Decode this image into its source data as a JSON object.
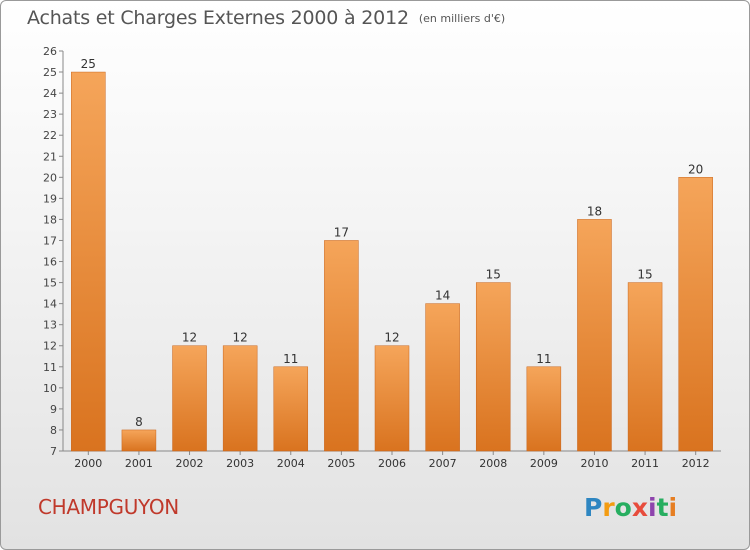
{
  "header": {
    "title": "Achats et Charges Externes 2000 à 2012",
    "unit": "(en milliers d'€)"
  },
  "footer": {
    "commune": "CHAMPGUYON",
    "logo_letters": [
      "P",
      "r",
      "o",
      "x",
      "i",
      "t",
      "i"
    ],
    "logo_colors": [
      "#2e86c1",
      "#f39c12",
      "#27ae60",
      "#e74c3c",
      "#8e44ad",
      "#27ae60",
      "#e67e22"
    ]
  },
  "colors": {
    "bar_light": "#f5a55a",
    "bar_dark": "#d9731f",
    "commune_text": "#c0392b"
  },
  "chart_data": {
    "type": "bar",
    "title": "Achats et Charges Externes 2000 à 2012",
    "subtitle": "(en milliers d'€)",
    "categories": [
      "2000",
      "2001",
      "2002",
      "2003",
      "2004",
      "2005",
      "2006",
      "2007",
      "2008",
      "2009",
      "2010",
      "2011",
      "2012"
    ],
    "values": [
      25,
      8,
      12,
      12,
      11,
      17,
      12,
      14,
      15,
      11,
      18,
      15,
      20
    ],
    "ylim": [
      7,
      26
    ],
    "yticks": [
      7,
      8,
      9,
      10,
      11,
      12,
      13,
      14,
      15,
      16,
      17,
      18,
      19,
      20,
      21,
      22,
      23,
      24,
      25,
      26
    ],
    "grid": false,
    "legend": "none"
  }
}
